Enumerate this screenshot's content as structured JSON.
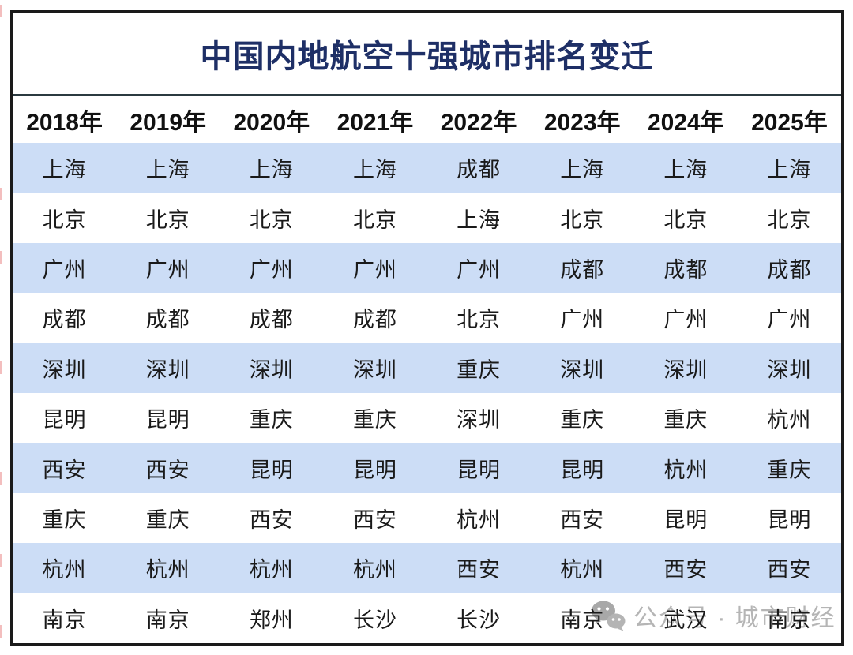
{
  "title": "中国内地航空十强城市排名变迁",
  "colors": {
    "title": "#1e2f66",
    "row_alt": "#ccddf6",
    "divider": "#2b3a40",
    "frame_border": "#1a1a1a",
    "header_text": "#111111",
    "cell_text": "#1a1a1a",
    "watermark": "#b5b5b5"
  },
  "chart_data": {
    "type": "table",
    "title": "中国内地航空十强城市排名变迁",
    "columns": [
      "2018年",
      "2019年",
      "2020年",
      "2021年",
      "2022年",
      "2023年",
      "2024年",
      "2025年"
    ],
    "rows": [
      [
        "上海",
        "上海",
        "上海",
        "上海",
        "成都",
        "上海",
        "上海",
        "上海"
      ],
      [
        "北京",
        "北京",
        "北京",
        "北京",
        "上海",
        "北京",
        "北京",
        "北京"
      ],
      [
        "广州",
        "广州",
        "广州",
        "广州",
        "广州",
        "成都",
        "成都",
        "成都"
      ],
      [
        "成都",
        "成都",
        "成都",
        "成都",
        "北京",
        "广州",
        "广州",
        "广州"
      ],
      [
        "深圳",
        "深圳",
        "深圳",
        "深圳",
        "重庆",
        "深圳",
        "深圳",
        "深圳"
      ],
      [
        "昆明",
        "昆明",
        "重庆",
        "重庆",
        "深圳",
        "重庆",
        "重庆",
        "杭州"
      ],
      [
        "西安",
        "西安",
        "昆明",
        "昆明",
        "昆明",
        "昆明",
        "杭州",
        "重庆"
      ],
      [
        "重庆",
        "重庆",
        "西安",
        "西安",
        "杭州",
        "西安",
        "昆明",
        "昆明"
      ],
      [
        "杭州",
        "杭州",
        "杭州",
        "杭州",
        "西安",
        "杭州",
        "西安",
        "西安"
      ],
      [
        "南京",
        "南京",
        "郑州",
        "长沙",
        "长沙",
        "南京",
        "武汉",
        "南京"
      ]
    ],
    "layout": {
      "row_striping": "odd-rows-light-blue",
      "columns_equal_width": true
    }
  },
  "watermark": {
    "icon": "wechat-icon",
    "text": "公众号 · 城市财经"
  }
}
